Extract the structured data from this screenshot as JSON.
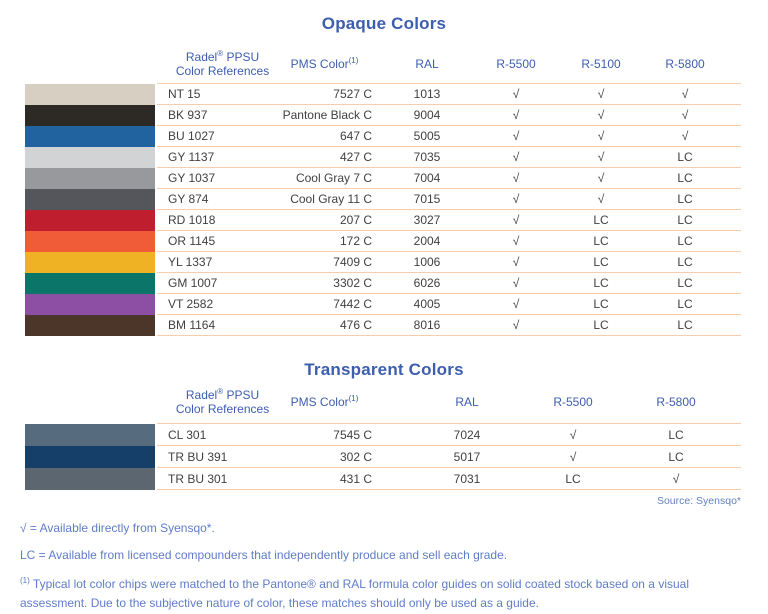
{
  "palette": {
    "header_blue": "#3d5dae",
    "body_text": "#414042",
    "divider_peach": "#f8cba9",
    "footnote_blue": "#5f7cc8"
  },
  "opaque_table": {
    "title": "Opaque Colors",
    "headers": {
      "ref_line1_pre": "Radel",
      "ref_sup": "®",
      "ref_line1_post": " PPSU",
      "ref_line2": "Color References",
      "pms": "PMS Color",
      "pms_sup": "(1)",
      "ral": "RAL",
      "r5500": "R-5500",
      "r5100": "R-5100",
      "r5800": "R-5800"
    },
    "rows": [
      {
        "swatch": "#d6cfc2",
        "swatch_name": "beige",
        "ref": "NT 15",
        "pms": "7527 C",
        "ral": "1013",
        "r5500": "√",
        "r5100": "√",
        "r5800": "√"
      },
      {
        "swatch": "#2d2a26",
        "swatch_name": "black",
        "ref": "BK 937",
        "pms": "Pantone Black C",
        "ral": "9004",
        "r5500": "√",
        "r5100": "√",
        "r5800": "√"
      },
      {
        "swatch": "#20639e",
        "swatch_name": "blue",
        "ref": "BU 1027",
        "pms": "647 C",
        "ral": "5005",
        "r5500": "√",
        "r5100": "√",
        "r5800": "√"
      },
      {
        "swatch": "#d1d3d5",
        "swatch_name": "light-gray",
        "ref": "GY 1137",
        "pms": "427 C",
        "ral": "7035",
        "r5500": "√",
        "r5100": "√",
        "r5800": "LC"
      },
      {
        "swatch": "#97999c",
        "swatch_name": "medium-gray",
        "ref": "GY 1037",
        "pms": "Cool Gray 7 C",
        "ral": "7004",
        "r5500": "√",
        "r5100": "√",
        "r5800": "LC"
      },
      {
        "swatch": "#54565b",
        "swatch_name": "dark-gray",
        "ref": "GY 874",
        "pms": "Cool Gray 11 C",
        "ral": "7015",
        "r5500": "√",
        "r5100": "√",
        "r5800": "LC"
      },
      {
        "swatch": "#be1e2d",
        "swatch_name": "red",
        "ref": "RD 1018",
        "pms": "207 C",
        "ral": "3027",
        "r5500": "√",
        "r5100": "LC",
        "r5800": "LC"
      },
      {
        "swatch": "#f15c38",
        "swatch_name": "orange",
        "ref": "OR 1145",
        "pms": "172 C",
        "ral": "2004",
        "r5500": "√",
        "r5100": "LC",
        "r5800": "LC"
      },
      {
        "swatch": "#efb224",
        "swatch_name": "yellow",
        "ref": "YL 1337",
        "pms": "7409 C",
        "ral": "1006",
        "r5500": "√",
        "r5100": "LC",
        "r5800": "LC"
      },
      {
        "swatch": "#0c756a",
        "swatch_name": "green",
        "ref": "GM 1007",
        "pms": "3302 C",
        "ral": "6026",
        "r5500": "√",
        "r5100": "LC",
        "r5800": "LC"
      },
      {
        "swatch": "#8c4fa4",
        "swatch_name": "violet",
        "ref": "VT 2582",
        "pms": "7442 C",
        "ral": "4005",
        "r5500": "√",
        "r5100": "LC",
        "r5800": "LC"
      },
      {
        "swatch": "#4c3529",
        "swatch_name": "brown",
        "ref": "BM 1164",
        "pms": "476 C",
        "ral": "8016",
        "r5500": "√",
        "r5100": "LC",
        "r5800": "LC"
      }
    ]
  },
  "transparent_table": {
    "title": "Transparent Colors",
    "headers": {
      "ref_line1_pre": "Radel",
      "ref_sup": "®",
      "ref_line1_post": " PPSU",
      "ref_line2": "Color References",
      "pms": "PMS Color",
      "pms_sup": "(1)",
      "ral": "RAL",
      "r5500": "R-5500",
      "r5800": "R-5800"
    },
    "rows": [
      {
        "swatch": "#566b7d",
        "swatch_name": "gray-blue",
        "ref": "CL 301",
        "pms": "7545 C",
        "ral": "7024",
        "r5500": "√",
        "r5800": "LC"
      },
      {
        "swatch": "#153f69",
        "swatch_name": "navy-blue",
        "ref": "TR BU 391",
        "pms": "302 C",
        "ral": "5017",
        "r5500": "√",
        "r5800": "LC"
      },
      {
        "swatch": "#5b6670",
        "swatch_name": "slate-gray",
        "ref": "TR BU 301",
        "pms": "431 C",
        "ral": "7031",
        "r5500": "LC",
        "r5800": "√"
      }
    ]
  },
  "footer": {
    "source": "Source: Syensqo*",
    "note_check": "√ = Available directly from Syensqo*.",
    "note_lc": "LC = Available from licensed compounders that independently produce and sell each grade.",
    "note1_sup": "(1)",
    "note1_text": " Typical lot color chips were matched to the Pantone® and RAL formula color guides on solid coated stock based on a visual assessment. Due to the subjective nature of color, these matches should only be used as a guide."
  }
}
